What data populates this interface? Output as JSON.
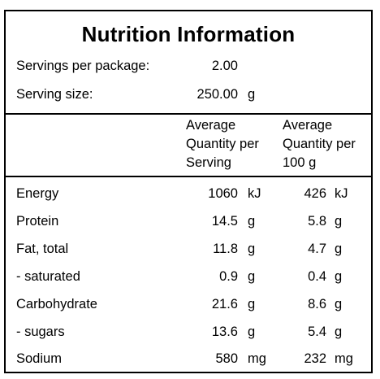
{
  "panel": {
    "title": "Nutrition Information",
    "servings_label": "Servings per package:",
    "servings_value": "2.00",
    "serving_size_label": "Serving size:",
    "serving_size_value": "250.00",
    "serving_size_unit": "g"
  },
  "columns": {
    "per_serving": [
      "Average",
      "Quantity per",
      "Serving"
    ],
    "per_100g": [
      "Average",
      "Quantity per",
      "100 g"
    ]
  },
  "rows": [
    {
      "name": "Energy",
      "serving": "1060",
      "serving_unit": "kJ",
      "per100": "426",
      "per100_unit": "kJ"
    },
    {
      "name": "Protein",
      "serving": "14.5",
      "serving_unit": "g",
      "per100": "5.8",
      "per100_unit": "g"
    },
    {
      "name": "Fat, total",
      "serving": "11.8",
      "serving_unit": "g",
      "per100": "4.7",
      "per100_unit": "g"
    },
    {
      "name": "- saturated",
      "serving": "0.9",
      "serving_unit": "g",
      "per100": "0.4",
      "per100_unit": "g"
    },
    {
      "name": "Carbohydrate",
      "serving": "21.6",
      "serving_unit": "g",
      "per100": "8.6",
      "per100_unit": "g"
    },
    {
      "name": "- sugars",
      "serving": "13.6",
      "serving_unit": "g",
      "per100": "5.4",
      "per100_unit": "g"
    },
    {
      "name": "Sodium",
      "serving": "580",
      "serving_unit": "mg",
      "per100": "232",
      "per100_unit": "mg"
    }
  ]
}
